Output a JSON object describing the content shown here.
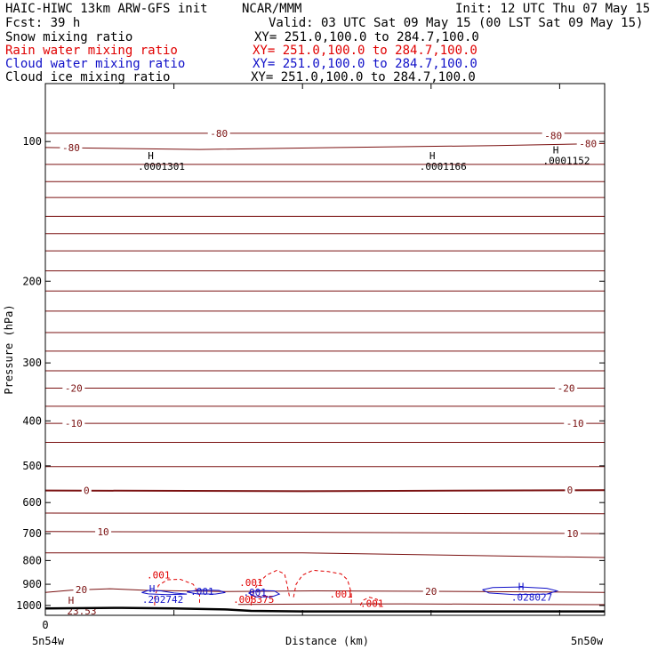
{
  "header": {
    "title": "HAIC-HIWC 13km ARW-GFS init",
    "org": "NCAR/MMM",
    "init": "Init: 12 UTC Thu 07 May 15",
    "fcst": "Fcst:   39 h",
    "valid": "Valid: 03 UTC Sat 09 May 15 (00 LST Sat 09 May 15)"
  },
  "legend": [
    {
      "label": "Snow mixing ratio",
      "xy": "XY= 251.0,100.0 to 284.7,100.0",
      "color": "#000000"
    },
    {
      "label": "Rain water mixing ratio",
      "xy": "XY= 251.0,100.0 to 284.7,100.0",
      "color": "#e00000"
    },
    {
      "label": "Cloud water mixing ratio",
      "xy": "XY= 251.0,100.0 to 284.7,100.0",
      "color": "#1010c8"
    },
    {
      "label": "Cloud ice mixing ratio",
      "xy": "XY= 251.0,100.0 to 284.7,100.0",
      "color": "#000000"
    }
  ],
  "colors": {
    "temperature": "#7a1010",
    "rain": "#e00000",
    "cloud_water": "#1010c8",
    "terrain": "#000000"
  },
  "chart_data": {
    "type": "line",
    "xlabel": "Distance (km)",
    "ylabel": "Pressure (hPa)",
    "yscale": "log",
    "ylim": [
      1050,
      75
    ],
    "xlim": [
      0,
      435
    ],
    "y_ticks": [
      100,
      200,
      300,
      400,
      500,
      600,
      700,
      800,
      900,
      1000
    ],
    "x_ticks": [
      0,
      100,
      200,
      300,
      400
    ],
    "x_tick_labels": {
      "start": "0"
    },
    "x_end_labels": {
      "left": "5n54w",
      "right": "5n50w"
    },
    "temperature_contours": [
      {
        "label": "-80",
        "points": [
          [
            0,
            96
          ],
          [
            435,
            96
          ]
        ]
      },
      {
        "label": "-80",
        "points": [
          [
            0,
            103
          ],
          [
            120,
            104
          ],
          [
            230,
            103
          ],
          [
            350,
            102
          ],
          [
            435,
            101
          ]
        ]
      },
      {
        "label": "",
        "points": [
          [
            0,
            112
          ],
          [
            435,
            112
          ]
        ]
      },
      {
        "label": "",
        "points": [
          [
            0,
            122
          ],
          [
            435,
            122
          ]
        ]
      },
      {
        "label": "",
        "points": [
          [
            0,
            132
          ],
          [
            435,
            132
          ]
        ]
      },
      {
        "label": "",
        "points": [
          [
            0,
            145
          ],
          [
            435,
            145
          ]
        ]
      },
      {
        "label": "",
        "points": [
          [
            0,
            158
          ],
          [
            435,
            158
          ]
        ]
      },
      {
        "label": "",
        "points": [
          [
            0,
            172
          ],
          [
            435,
            172
          ]
        ]
      },
      {
        "label": "",
        "points": [
          [
            0,
            190
          ],
          [
            435,
            190
          ]
        ]
      },
      {
        "label": "",
        "points": [
          [
            0,
            210
          ],
          [
            435,
            210
          ]
        ]
      },
      {
        "label": "",
        "points": [
          [
            0,
            232
          ],
          [
            435,
            232
          ]
        ]
      },
      {
        "label": "",
        "points": [
          [
            0,
            258
          ],
          [
            435,
            258
          ]
        ]
      },
      {
        "label": "",
        "points": [
          [
            0,
            283
          ],
          [
            435,
            283
          ]
        ]
      },
      {
        "label": "",
        "points": [
          [
            0,
            312
          ],
          [
            435,
            312
          ]
        ]
      },
      {
        "label": "-20",
        "points": [
          [
            0,
            340
          ],
          [
            435,
            340
          ]
        ]
      },
      {
        "label": "",
        "points": [
          [
            0,
            372
          ],
          [
            435,
            372
          ]
        ]
      },
      {
        "label": "-10",
        "points": [
          [
            0,
            405
          ],
          [
            435,
            405
          ]
        ]
      },
      {
        "label": "",
        "points": [
          [
            0,
            445
          ],
          [
            435,
            445
          ]
        ]
      },
      {
        "label": "",
        "points": [
          [
            0,
            502
          ],
          [
            435,
            502
          ]
        ]
      },
      {
        "label": "0",
        "points": [
          [
            0,
            565
          ],
          [
            200,
            567
          ],
          [
            435,
            564
          ]
        ],
        "bold": true
      },
      {
        "label": "",
        "points": [
          [
            0,
            632
          ],
          [
            435,
            634
          ]
        ]
      },
      {
        "label": "10",
        "points": [
          [
            0,
            693
          ],
          [
            200,
            695
          ],
          [
            435,
            700
          ]
        ]
      },
      {
        "label": "",
        "points": [
          [
            0,
            770
          ],
          [
            200,
            770
          ],
          [
            435,
            788
          ]
        ]
      },
      {
        "label": "20",
        "points": [
          [
            0,
            937
          ],
          [
            20,
            927
          ],
          [
            50,
            920
          ],
          [
            80,
            928
          ],
          [
            140,
            933
          ],
          [
            210,
            930
          ],
          [
            300,
            932
          ],
          [
            435,
            937
          ]
        ]
      },
      {
        "label": "",
        "points": [
          [
            150,
            995
          ],
          [
            200,
            993
          ],
          [
            280,
            992
          ],
          [
            435,
            996
          ]
        ]
      }
    ],
    "contour_label_positions": [
      {
        "text": "-80",
        "x": 135,
        "p": 96
      },
      {
        "text": "-80",
        "x": 395,
        "p": 97
      },
      {
        "text": "-80",
        "x": 20,
        "p": 103
      },
      {
        "text": "-80",
        "x": 422,
        "p": 101
      },
      {
        "text": "-20",
        "x": 22,
        "p": 340
      },
      {
        "text": "-20",
        "x": 405,
        "p": 340
      },
      {
        "text": "-10",
        "x": 22,
        "p": 405
      },
      {
        "text": "-10",
        "x": 412,
        "p": 405
      },
      {
        "text": "0",
        "x": 32,
        "p": 565
      },
      {
        "text": "0",
        "x": 408,
        "p": 564
      },
      {
        "text": "10",
        "x": 45,
        "p": 693
      },
      {
        "text": "10",
        "x": 410,
        "p": 700
      },
      {
        "text": "20",
        "x": 28,
        "p": 924
      },
      {
        "text": "20",
        "x": 300,
        "p": 932
      }
    ],
    "maxima": [
      {
        "text": ".0001301",
        "x": 82,
        "p": 110
      },
      {
        "text": ".0001166",
        "x": 301,
        "p": 110
      },
      {
        "text": ".0001152",
        "x": 397,
        "p": 107
      },
      {
        "text": ".202742",
        "x": 83,
        "p": 945
      },
      {
        "text": ".028027",
        "x": 370,
        "p": 935
      },
      {
        "text": "23.53",
        "x": 20,
        "p": 1000
      }
    ],
    "rain_contours": [
      {
        "label": ".001",
        "points": [
          [
            85,
            1000
          ],
          [
            85,
            960
          ],
          [
            88,
            905
          ],
          [
            95,
            880
          ],
          [
            105,
            878
          ],
          [
            115,
            900
          ],
          [
            120,
            950
          ],
          [
            120,
            1000
          ]
        ]
      },
      {
        "label": ".001",
        "points": [
          [
            160,
            1000
          ],
          [
            160,
            955
          ],
          [
            165,
            900
          ],
          [
            172,
            860
          ],
          [
            180,
            840
          ],
          [
            186,
            855
          ],
          [
            188,
            900
          ],
          [
            190,
            960
          ]
        ]
      },
      {
        "label": ".001",
        "points": [
          [
            193,
            960
          ],
          [
            195,
            900
          ],
          [
            200,
            860
          ],
          [
            208,
            840
          ],
          [
            220,
            845
          ],
          [
            230,
            855
          ],
          [
            235,
            880
          ],
          [
            238,
            940
          ],
          [
            238,
            1000
          ]
        ]
      },
      {
        "label": ".001",
        "points": [
          [
            245,
            1000
          ],
          [
            247,
            975
          ],
          [
            252,
            960
          ],
          [
            258,
            970
          ],
          [
            260,
            1000
          ]
        ]
      }
    ],
    "rain_labels": [
      {
        "text": ".001",
        "x": 88,
        "p": 875
      },
      {
        "text": ".001",
        "x": 160,
        "p": 908
      },
      {
        "text": ".008375",
        "x": 162,
        "p": 987
      },
      {
        "text": ".001",
        "x": 230,
        "p": 962
      },
      {
        "text": ".001",
        "x": 254,
        "p": 1008
      }
    ],
    "cloud_water_contours": [
      {
        "label": ".001",
        "points": [
          [
            75,
            938
          ],
          [
            80,
            928
          ],
          [
            90,
            930
          ],
          [
            100,
            940
          ],
          [
            110,
            945
          ],
          [
            95,
            948
          ],
          [
            80,
            944
          ],
          [
            75,
            938
          ]
        ]
      },
      {
        "label": ".001",
        "points": [
          [
            110,
            935
          ],
          [
            120,
            925
          ],
          [
            135,
            928
          ],
          [
            140,
            938
          ],
          [
            132,
            945
          ],
          [
            118,
            944
          ],
          [
            110,
            935
          ]
        ]
      },
      {
        "label": ".001",
        "points": [
          [
            158,
            940
          ],
          [
            165,
            928
          ],
          [
            178,
            930
          ],
          [
            182,
            945
          ],
          [
            176,
            958
          ],
          [
            164,
            958
          ],
          [
            158,
            940
          ]
        ]
      },
      {
        "label": "",
        "points": [
          [
            340,
            925
          ],
          [
            348,
            915
          ],
          [
            370,
            912
          ],
          [
            390,
            918
          ],
          [
            398,
            930
          ],
          [
            390,
            945
          ],
          [
            365,
            948
          ],
          [
            345,
            940
          ],
          [
            340,
            925
          ]
        ]
      }
    ],
    "cloud_water_labels": [
      {
        "text": ".001",
        "x": 122,
        "p": 948
      },
      {
        "text": ".001",
        "x": 163,
        "p": 952
      }
    ],
    "terrain": [
      [
        0,
        1015
      ],
      [
        60,
        1012
      ],
      [
        100,
        1015
      ],
      [
        140,
        1020
      ],
      [
        160,
        1027
      ],
      [
        200,
        1030
      ],
      [
        260,
        1030
      ],
      [
        435,
        1030
      ]
    ]
  }
}
